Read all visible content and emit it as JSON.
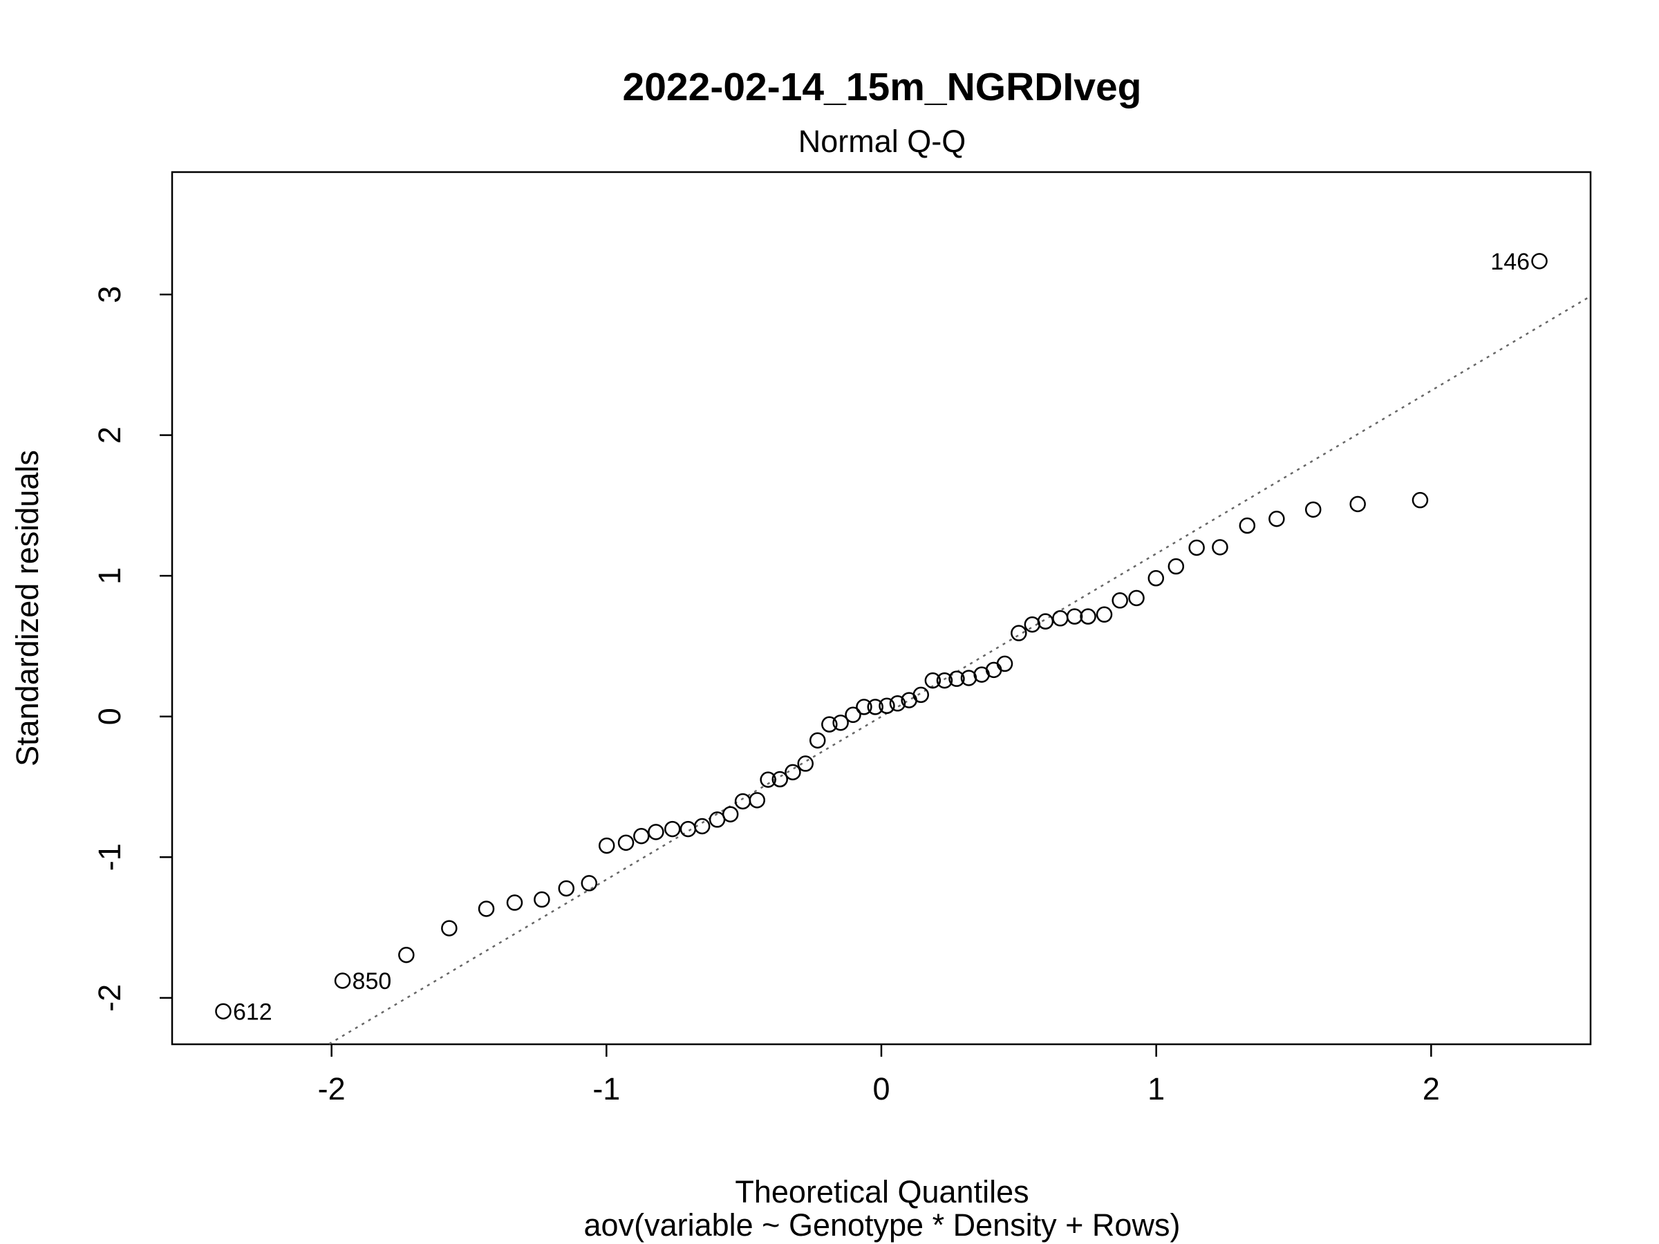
{
  "chart_data": {
    "type": "scatter",
    "title": "2022-02-14_15m_NGRDIveg",
    "subtitle": "Normal Q-Q",
    "xlabel": "Theoretical Quantiles",
    "xlabel2": "aov(variable ~ Genotype * Density + Rows)",
    "ylabel": "Standardized residuals",
    "xlim": [
      -2.58,
      2.58
    ],
    "ylim": [
      -2.33,
      3.87
    ],
    "x_ticks": [
      -2,
      -1,
      0,
      1,
      2
    ],
    "x_tick_labels": [
      "-2",
      "-1",
      "0",
      "1",
      "2"
    ],
    "y_ticks": [
      -2,
      -1,
      0,
      1,
      2,
      3
    ],
    "y_tick_labels": [
      "-2",
      "-1",
      "0",
      "1",
      "2",
      "3"
    ],
    "grid": false,
    "reference_line": {
      "slope": 1.1584,
      "intercept": -0.0006
    },
    "points": [
      {
        "x": -2.394,
        "y": -2.096,
        "label": "612"
      },
      {
        "x": -1.96,
        "y": -1.878,
        "label": "850"
      },
      {
        "x": -1.728,
        "y": -1.695
      },
      {
        "x": -1.572,
        "y": -1.505
      },
      {
        "x": -1.437,
        "y": -1.367
      },
      {
        "x": -1.334,
        "y": -1.323
      },
      {
        "x": -1.235,
        "y": -1.301
      },
      {
        "x": -1.146,
        "y": -1.222
      },
      {
        "x": -1.063,
        "y": -1.185
      },
      {
        "x": -0.999,
        "y": -0.918
      },
      {
        "x": -0.929,
        "y": -0.897
      },
      {
        "x": -0.873,
        "y": -0.85
      },
      {
        "x": -0.82,
        "y": -0.821
      },
      {
        "x": -0.76,
        "y": -0.8
      },
      {
        "x": -0.703,
        "y": -0.8
      },
      {
        "x": -0.652,
        "y": -0.78
      },
      {
        "x": -0.597,
        "y": -0.733
      },
      {
        "x": -0.549,
        "y": -0.695
      },
      {
        "x": -0.504,
        "y": -0.603
      },
      {
        "x": -0.452,
        "y": -0.595
      },
      {
        "x": -0.412,
        "y": -0.449
      },
      {
        "x": -0.369,
        "y": -0.446
      },
      {
        "x": -0.322,
        "y": -0.396
      },
      {
        "x": -0.276,
        "y": -0.335
      },
      {
        "x": -0.232,
        "y": -0.17
      },
      {
        "x": -0.189,
        "y": -0.056
      },
      {
        "x": -0.148,
        "y": -0.044
      },
      {
        "x": -0.103,
        "y": 0.012
      },
      {
        "x": -0.063,
        "y": 0.068
      },
      {
        "x": -0.022,
        "y": 0.068
      },
      {
        "x": 0.02,
        "y": 0.076
      },
      {
        "x": 0.059,
        "y": 0.093
      },
      {
        "x": 0.101,
        "y": 0.116
      },
      {
        "x": 0.144,
        "y": 0.154
      },
      {
        "x": 0.187,
        "y": 0.256
      },
      {
        "x": 0.23,
        "y": 0.256
      },
      {
        "x": 0.274,
        "y": 0.268
      },
      {
        "x": 0.318,
        "y": 0.274
      },
      {
        "x": 0.365,
        "y": 0.298
      },
      {
        "x": 0.409,
        "y": 0.331
      },
      {
        "x": 0.449,
        "y": 0.375
      },
      {
        "x": 0.5,
        "y": 0.593
      },
      {
        "x": 0.549,
        "y": 0.654
      },
      {
        "x": 0.597,
        "y": 0.676
      },
      {
        "x": 0.651,
        "y": 0.698
      },
      {
        "x": 0.703,
        "y": 0.711
      },
      {
        "x": 0.752,
        "y": 0.711
      },
      {
        "x": 0.811,
        "y": 0.725
      },
      {
        "x": 0.868,
        "y": 0.825
      },
      {
        "x": 0.928,
        "y": 0.842
      },
      {
        "x": 0.999,
        "y": 0.983
      },
      {
        "x": 1.072,
        "y": 1.067
      },
      {
        "x": 1.147,
        "y": 1.2
      },
      {
        "x": 1.232,
        "y": 1.203
      },
      {
        "x": 1.331,
        "y": 1.357
      },
      {
        "x": 1.438,
        "y": 1.405
      },
      {
        "x": 1.571,
        "y": 1.471
      },
      {
        "x": 1.733,
        "y": 1.51
      },
      {
        "x": 1.96,
        "y": 1.538
      },
      {
        "x": 2.394,
        "y": 3.237,
        "label": "146"
      }
    ]
  }
}
